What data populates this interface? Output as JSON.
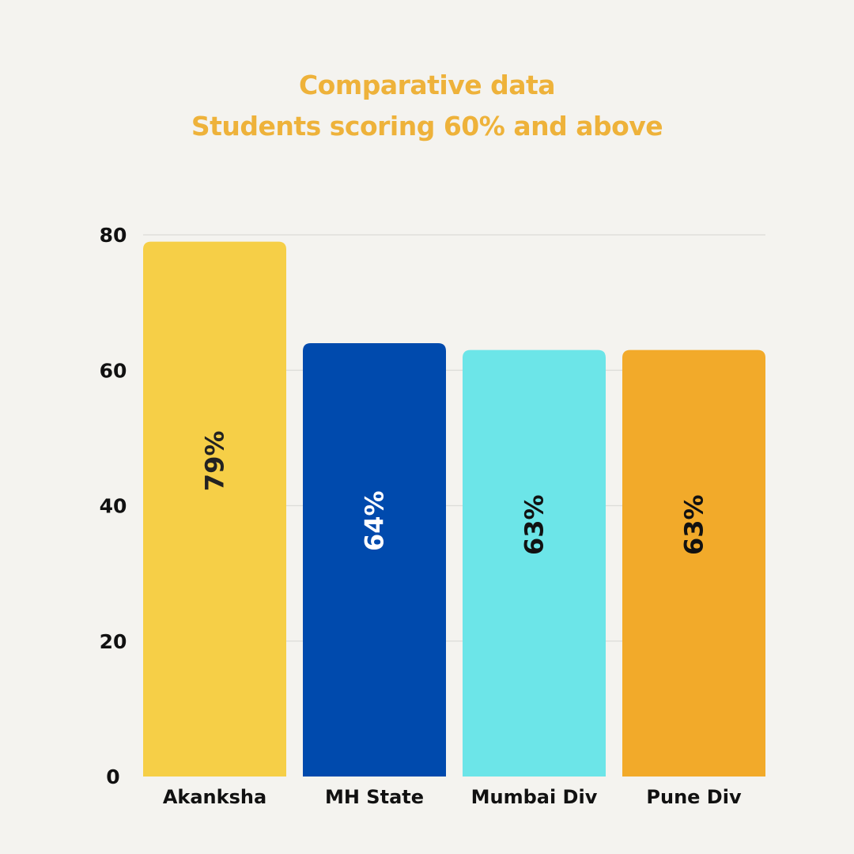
{
  "chart_data": {
    "type": "bar",
    "title": "Comparative data",
    "subtitle": "Students scoring 60% and above",
    "categories": [
      "Akanksha",
      "MH State",
      "Mumbai Div",
      "Pune Div"
    ],
    "values": [
      79,
      64,
      63,
      63
    ],
    "data_labels": [
      "79%",
      "64%",
      "63%",
      "63%"
    ],
    "ylim": [
      0,
      80
    ],
    "yticks": [
      0,
      20,
      40,
      60,
      80
    ],
    "ytick_labels": [
      "0",
      "20",
      "40",
      "60",
      "80"
    ],
    "xlabel": "",
    "ylabel": "",
    "grid": true,
    "legend": "none",
    "bar_colors": [
      "#f6cf47",
      "#004aad",
      "#6ce5e8",
      "#f2aa2a"
    ],
    "label_colors": [
      "#222222",
      "#ffffff",
      "#111111",
      "#111111"
    ],
    "title_color": "#eeb23a"
  }
}
